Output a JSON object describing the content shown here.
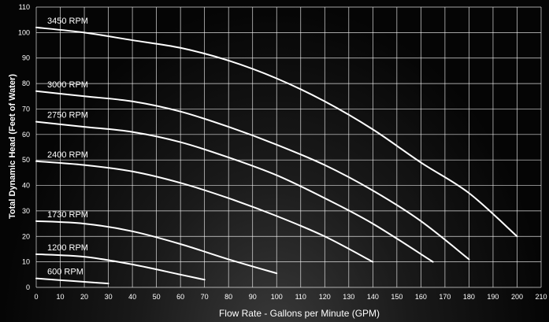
{
  "chart_data": {
    "type": "line",
    "title": "",
    "xlabel": "Flow Rate - Gallons per Minute (GPM)",
    "ylabel": "Total Dynamic Head (Feet of Water)",
    "xlim": [
      0,
      210
    ],
    "ylim": [
      0,
      110
    ],
    "x_ticks": [
      0,
      10,
      20,
      30,
      40,
      50,
      60,
      70,
      80,
      90,
      100,
      110,
      120,
      130,
      140,
      150,
      160,
      170,
      180,
      190,
      200,
      210
    ],
    "y_ticks": [
      0,
      10,
      20,
      30,
      40,
      50,
      60,
      70,
      80,
      90,
      100,
      110
    ],
    "grid": true,
    "line_color": "#ffffff",
    "grid_color": "#ffffff",
    "series": [
      {
        "name": "3450 RPM",
        "x": [
          0,
          20,
          40,
          60,
          80,
          100,
          120,
          140,
          160,
          180,
          200
        ],
        "y": [
          102,
          100,
          97,
          94,
          89,
          82,
          73,
          62,
          49,
          37,
          20
        ]
      },
      {
        "name": "3000 RPM",
        "x": [
          0,
          20,
          40,
          60,
          80,
          100,
          120,
          140,
          160,
          180
        ],
        "y": [
          77,
          75,
          73,
          69,
          63,
          56,
          48,
          38,
          26,
          11
        ]
      },
      {
        "name": "2750 RPM",
        "x": [
          0,
          20,
          40,
          60,
          80,
          100,
          120,
          140,
          165
        ],
        "y": [
          65,
          63,
          61,
          57,
          51,
          44,
          35,
          25,
          10
        ]
      },
      {
        "name": "2400 RPM",
        "x": [
          0,
          20,
          40,
          60,
          80,
          100,
          120,
          140
        ],
        "y": [
          49.5,
          48,
          45.5,
          41,
          35,
          28,
          20,
          10
        ]
      },
      {
        "name": "1730 RPM",
        "x": [
          0,
          20,
          40,
          60,
          80,
          100
        ],
        "y": [
          26,
          25,
          22,
          17,
          11,
          5.5
        ]
      },
      {
        "name": "1200 RPM",
        "x": [
          0,
          20,
          40,
          60,
          70
        ],
        "y": [
          13,
          12,
          9,
          5,
          3
        ]
      },
      {
        "name": "600 RPM",
        "x": [
          0,
          15,
          30
        ],
        "y": [
          3.5,
          2.5,
          1.5
        ]
      }
    ]
  }
}
